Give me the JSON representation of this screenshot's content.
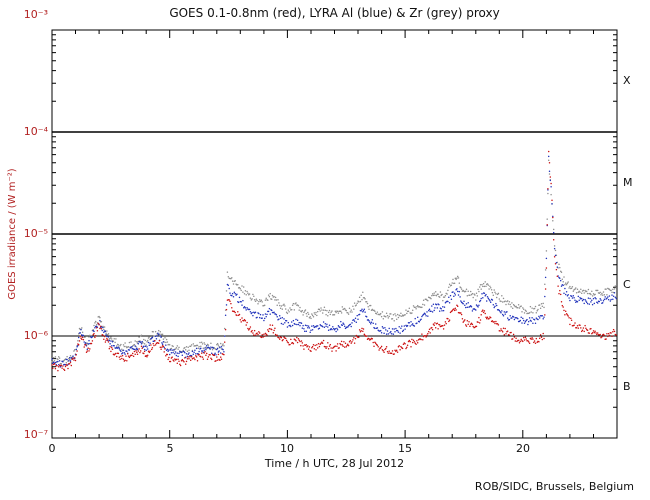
{
  "page": {
    "background": "#ffffff"
  },
  "chart_data": {
    "type": "scatter",
    "title": "GOES 0.1-0.8nm (red), LYRA Al (blue) & Zr (grey) proxy",
    "xlabel": "Time / h UTC, 28 Jul 2012",
    "ylabel": "GOES irradiance / (W m⁻²)",
    "credit": "ROB/SIDC, Brussels, Belgium",
    "x_range_hours": [
      0,
      24
    ],
    "y_range": [
      1e-07,
      0.001
    ],
    "y_scale": "log",
    "grid": false,
    "legend_position": "in-title",
    "x_tick_labels": [
      "0",
      "5",
      "10",
      "15",
      "20"
    ],
    "x_tick_values": [
      0,
      5,
      10,
      15,
      20
    ],
    "y_tick_labels": [
      "10⁻³",
      "10⁻⁴",
      "10⁻⁵",
      "10⁻⁶",
      "10⁻⁷"
    ],
    "flare_class_labels": [
      "X",
      "M",
      "C",
      "B"
    ],
    "reference_lines": [
      0.0001,
      1e-05,
      1e-06
    ],
    "goes_axis_color": "#b22222",
    "x": [
      0,
      0.5,
      1.0,
      1.2,
      1.5,
      2.0,
      2.2,
      2.5,
      3.0,
      3.5,
      3.8,
      4.0,
      4.3,
      4.5,
      4.8,
      5.0,
      5.5,
      6.0,
      6.5,
      7.0,
      7.3,
      7.45,
      7.6,
      8.0,
      8.5,
      9.0,
      9.3,
      9.6,
      10.0,
      10.4,
      10.7,
      11.0,
      11.5,
      12.0,
      12.3,
      12.6,
      13.0,
      13.2,
      13.5,
      14.0,
      14.5,
      15.0,
      15.5,
      16.0,
      16.3,
      16.6,
      17.0,
      17.2,
      17.5,
      18.0,
      18.3,
      18.6,
      19.0,
      19.5,
      20.0,
      20.5,
      20.9,
      21.0,
      21.1,
      21.2,
      21.35,
      21.5,
      21.75,
      22.0,
      22.5,
      23.0,
      23.5,
      24.0
    ],
    "series": [
      {
        "name": "GOES 0.1-0.8nm",
        "color": "#cc1111",
        "values": [
          5e-07,
          4.8e-07,
          6e-07,
          1.05e-06,
          7e-07,
          1.3e-06,
          1e-06,
          7.5e-07,
          6e-07,
          6.5e-07,
          7.5e-07,
          6.5e-07,
          8.5e-07,
          9e-07,
          7e-07,
          6e-07,
          5.5e-07,
          6e-07,
          6.5e-07,
          6e-07,
          6.5e-07,
          2.3e-06,
          2e-06,
          1.5e-06,
          1.1e-06,
          1e-06,
          1.25e-06,
          1e-06,
          8.5e-07,
          9.5e-07,
          8e-07,
          7.5e-07,
          8.5e-07,
          7.5e-07,
          8.5e-07,
          8e-07,
          1e-06,
          1.2e-06,
          9e-07,
          7.5e-07,
          7e-07,
          8e-07,
          9e-07,
          1.1e-06,
          1.3e-06,
          1.2e-06,
          1.7e-06,
          1.9e-06,
          1.4e-06,
          1.2e-06,
          1.7e-06,
          1.5e-06,
          1.2e-06,
          1e-06,
          9e-07,
          9e-07,
          1e-06,
          5e-06,
          6e-05,
          3e-05,
          6e-06,
          3e-06,
          1.8e-06,
          1.4e-06,
          1.2e-06,
          1.1e-06,
          1e-06,
          1.1e-06
        ]
      },
      {
        "name": "LYRA Al proxy",
        "color": "#2233bb",
        "values": [
          5.5e-07,
          5.2e-07,
          6.5e-07,
          1.15e-06,
          7.8e-07,
          1.4e-06,
          1.1e-06,
          8.5e-07,
          7e-07,
          7.5e-07,
          8.5e-07,
          7.5e-07,
          9.5e-07,
          1e-06,
          8e-07,
          7e-07,
          6.5e-07,
          7e-07,
          7.5e-07,
          7e-07,
          7.5e-07,
          3e-06,
          2.7e-06,
          2.2e-06,
          1.7e-06,
          1.5e-06,
          1.8e-06,
          1.5e-06,
          1.3e-06,
          1.4e-06,
          1.2e-06,
          1.15e-06,
          1.3e-06,
          1.15e-06,
          1.3e-06,
          1.2e-06,
          1.5e-06,
          1.8e-06,
          1.4e-06,
          1.15e-06,
          1.1e-06,
          1.2e-06,
          1.4e-06,
          1.7e-06,
          2e-06,
          1.8e-06,
          2.5e-06,
          2.8e-06,
          2.1e-06,
          1.8e-06,
          2.5e-06,
          2.2e-06,
          1.8e-06,
          1.5e-06,
          1.4e-06,
          1.4e-06,
          1.5e-06,
          6e-06,
          5.5e-05,
          2.8e-05,
          7e-06,
          4e-06,
          2.8e-06,
          2.4e-06,
          2.2e-06,
          2.2e-06,
          2.3e-06,
          2.5e-06
        ]
      },
      {
        "name": "LYRA Zr proxy",
        "color": "#8f8f8f",
        "values": [
          6e-07,
          5.6e-07,
          7e-07,
          1.25e-06,
          8.5e-07,
          1.55e-06,
          1.2e-06,
          9.5e-07,
          7.8e-07,
          8.2e-07,
          9.5e-07,
          8.2e-07,
          1.05e-06,
          1.1e-06,
          9e-07,
          7.8e-07,
          7.2e-07,
          7.8e-07,
          8.2e-07,
          7.8e-07,
          8.2e-07,
          4e-06,
          3.6e-06,
          3e-06,
          2.4e-06,
          2.1e-06,
          2.5e-06,
          2.1e-06,
          1.8e-06,
          2e-06,
          1.7e-06,
          1.6e-06,
          1.8e-06,
          1.6e-06,
          1.8e-06,
          1.7e-06,
          2.1e-06,
          2.5e-06,
          1.9e-06,
          1.6e-06,
          1.5e-06,
          1.7e-06,
          1.9e-06,
          2.3e-06,
          2.7e-06,
          2.4e-06,
          3.3e-06,
          3.7e-06,
          2.8e-06,
          2.4e-06,
          3.3e-06,
          2.9e-06,
          2.4e-06,
          2e-06,
          1.8e-06,
          1.8e-06,
          2e-06,
          7e-06,
          5e-05,
          2.5e-05,
          8e-06,
          5e-06,
          3.5e-06,
          3e-06,
          2.7e-06,
          2.6e-06,
          2.7e-06,
          2.9e-06
        ]
      }
    ]
  }
}
